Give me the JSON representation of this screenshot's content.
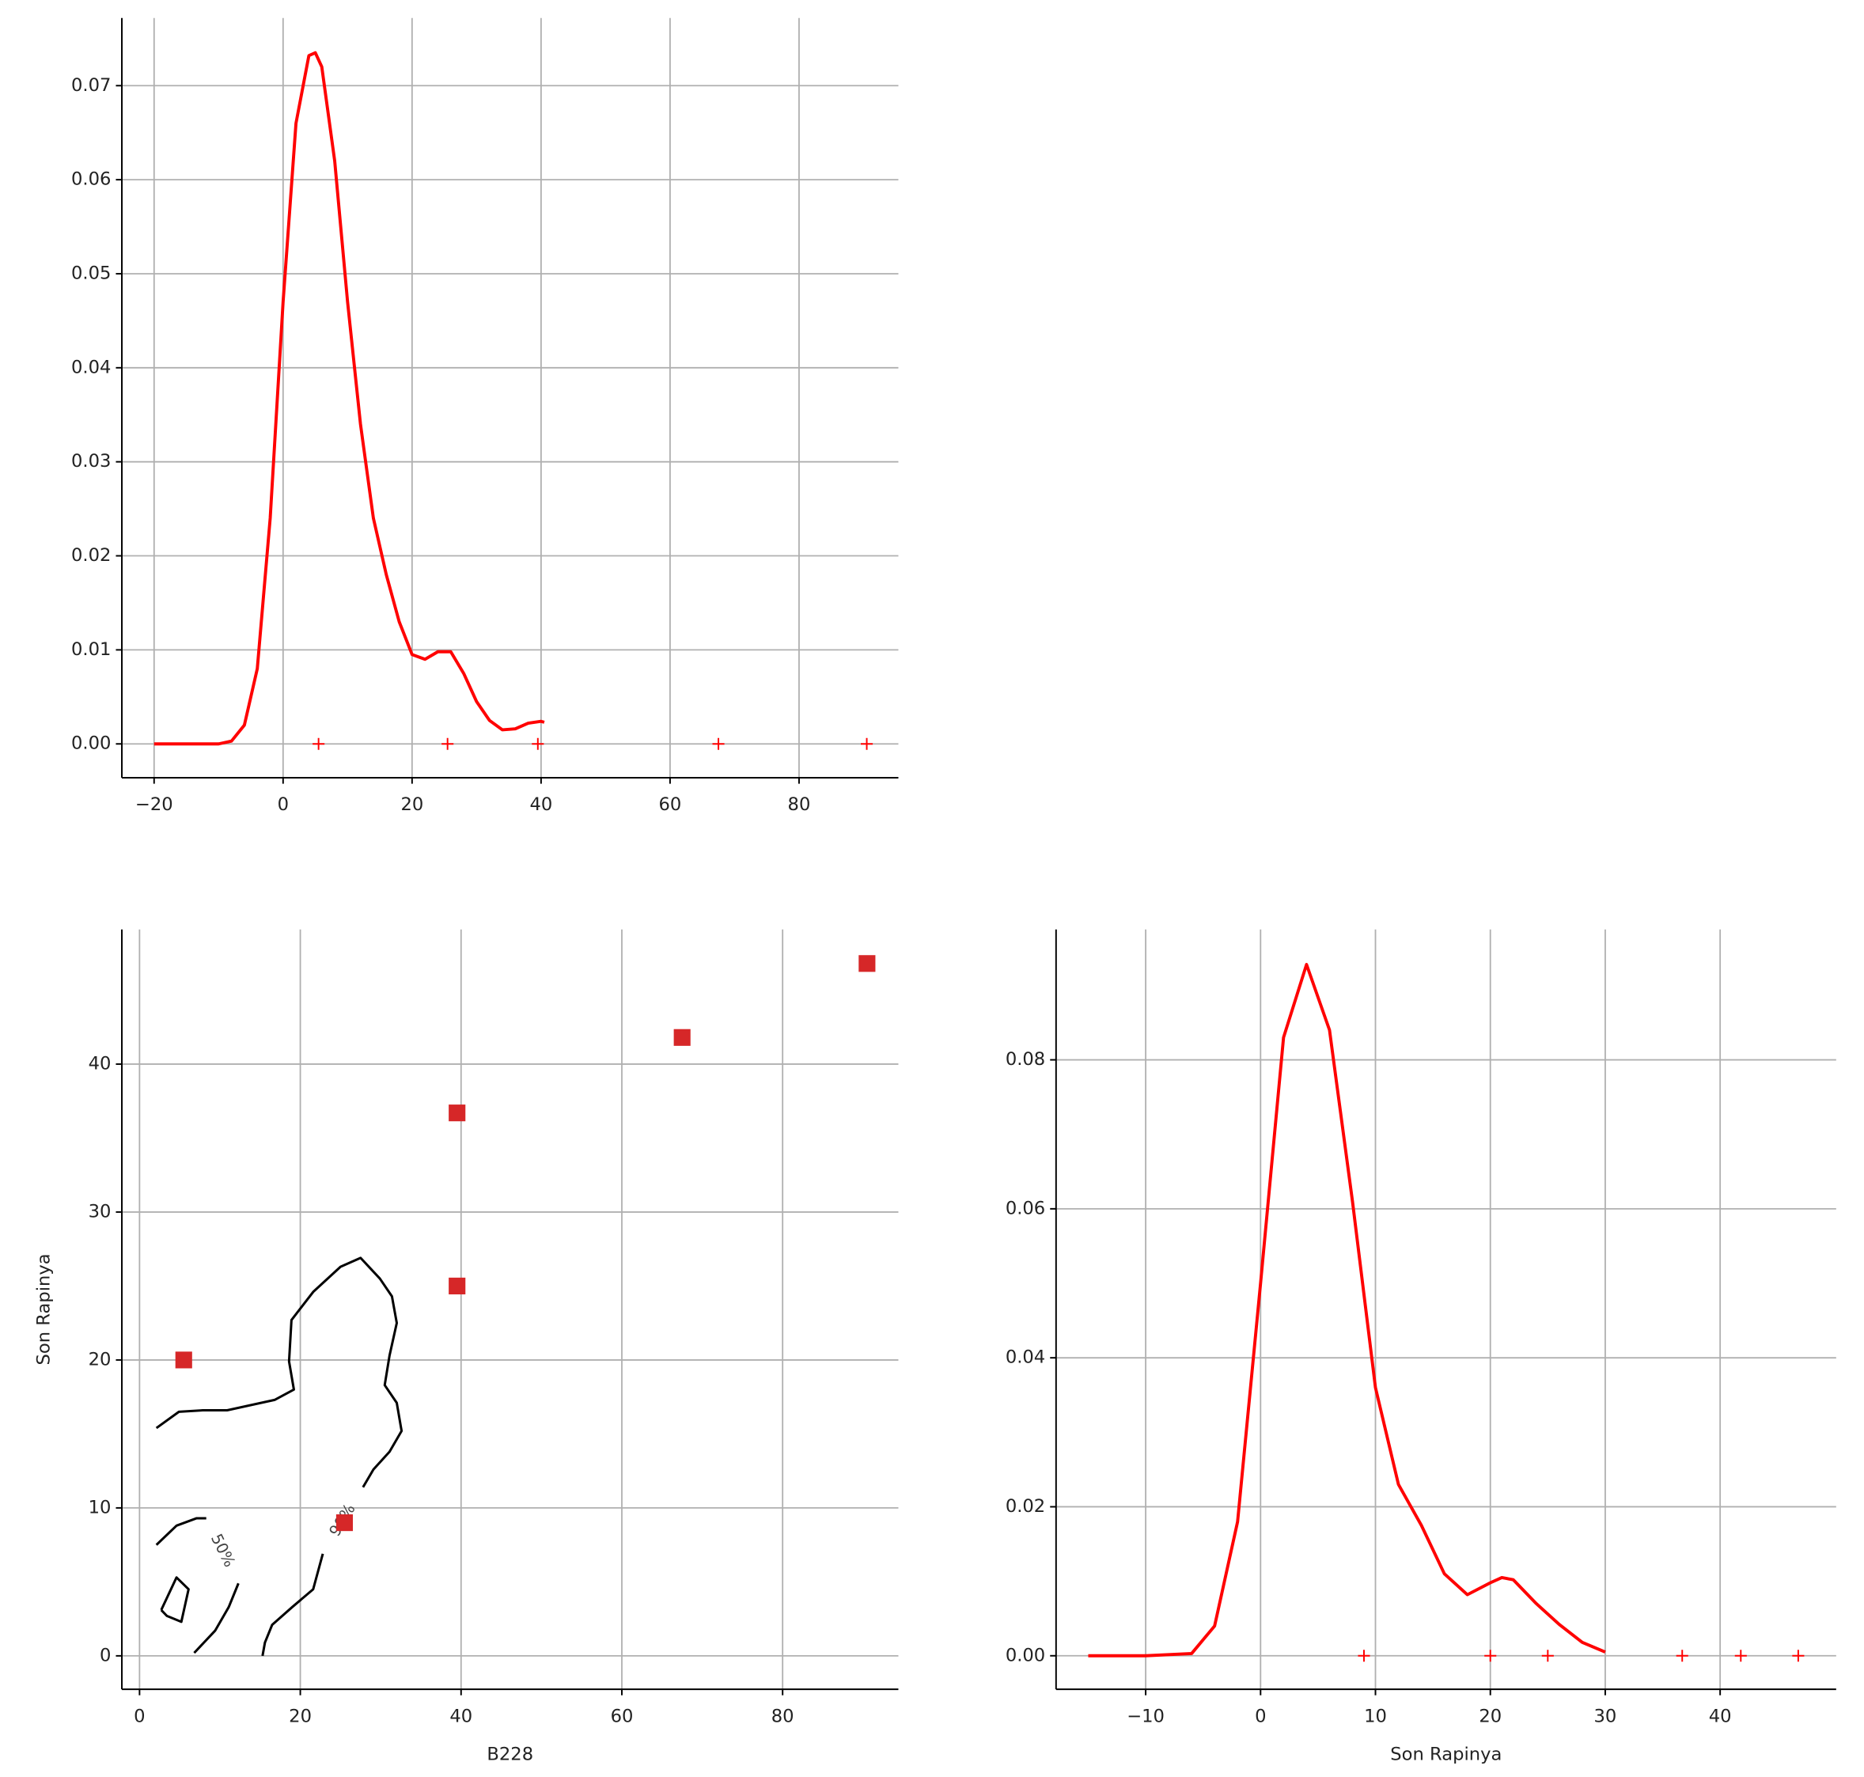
{
  "chart_data": [
    {
      "type": "line",
      "color": "#ff0000",
      "rug_color": "#ff0000",
      "grid": true,
      "x": [
        -20,
        -10,
        -8,
        -6,
        -4,
        -2,
        0,
        2,
        4,
        5,
        6,
        8,
        10,
        12,
        14,
        16,
        18,
        20,
        22,
        24,
        26,
        28,
        30,
        32,
        34,
        36,
        38,
        40,
        40.5
      ],
      "y": [
        0,
        0,
        0.0003,
        0.002,
        0.008,
        0.024,
        0.047,
        0.066,
        0.0732,
        0.0735,
        0.072,
        0.062,
        0.047,
        0.034,
        0.024,
        0.018,
        0.013,
        0.0095,
        0.009,
        0.0098,
        0.0098,
        0.0075,
        0.0045,
        0.0025,
        0.0015,
        0.0016,
        0.0022,
        0.0024,
        0.0023
      ],
      "rug": [
        5.5,
        25.5,
        39.5,
        67.5,
        90.5
      ],
      "xlim": [
        -25,
        95.4
      ],
      "ylim": [
        -0.0036,
        0.0772
      ],
      "xticks": [
        {
          "value": -20,
          "label": "−20"
        },
        0,
        20,
        40,
        60,
        80
      ],
      "yticks": [
        {
          "value": 0,
          "label": "0.00"
        },
        0.01,
        0.02,
        0.03,
        0.04,
        0.05,
        0.06,
        0.07
      ]
    },
    {
      "type": "scatter",
      "color": "#d62728",
      "contour_color": "#000000",
      "grid": true,
      "xlabel": "B228",
      "ylabel": "Son Rapinya",
      "x": [
        5.5,
        25.5,
        39.5,
        39.5,
        67.5,
        90.5
      ],
      "y": [
        20,
        9,
        25,
        36.7,
        41.8,
        46.8
      ],
      "contours": [
        {
          "label": "90%",
          "x": [
            2.1,
            4.9,
            7.9,
            10.9,
            16.8,
            19.2,
            18.6,
            18.9,
            21.6,
            25,
            27.5,
            29.9,
            31.4,
            32,
            31.1,
            30.5,
            32,
            32.6,
            31.1,
            29.1,
            27.8,
            null,
            22.8,
            21.6,
            19,
            16.5,
            15.6,
            15.3
          ],
          "y": [
            15.4,
            16.5,
            16.6,
            16.6,
            17.3,
            18,
            19.9,
            22.7,
            24.6,
            26.3,
            26.9,
            25.5,
            24.3,
            22.5,
            20.3,
            18.3,
            17.1,
            15.2,
            13.8,
            12.6,
            11.4,
            null,
            6.9,
            4.5,
            3.3,
            2.1,
            0.9,
            0
          ]
        },
        {
          "label": "50%",
          "x": [
            2.1,
            4.6,
            7.1,
            8.3,
            null,
            12.3,
            11.1,
            9.4,
            6.8
          ],
          "y": [
            7.5,
            8.8,
            9.3,
            9.3,
            null,
            4.9,
            3.3,
            1.7,
            0.2
          ]
        },
        {
          "x": [
            2.7,
            4.6,
            6.1,
            5.2,
            3.4,
            2.7
          ],
          "y": [
            3.1,
            5.3,
            4.5,
            2.3,
            2.7,
            3.1
          ]
        }
      ],
      "xlim": [
        -2.2,
        94.4
      ],
      "ylim": [
        -2.26,
        49.1
      ],
      "xticks": [
        0,
        20,
        40,
        60,
        80
      ],
      "yticks": [
        0,
        10,
        20,
        30,
        40
      ]
    },
    {
      "type": "line",
      "color": "#ff0000",
      "rug_color": "#ff0000",
      "grid": true,
      "xlabel": "Son Rapinya",
      "x": [
        -15,
        -10,
        -6,
        -4,
        -2,
        0,
        2,
        4,
        6,
        8,
        10,
        12,
        14,
        16,
        18,
        20,
        21,
        22,
        24,
        26,
        28,
        30
      ],
      "y": [
        0,
        0,
        0.0003,
        0.004,
        0.018,
        0.05,
        0.083,
        0.0928,
        0.084,
        0.061,
        0.036,
        0.023,
        0.0175,
        0.011,
        0.0082,
        0.0098,
        0.0105,
        0.0102,
        0.007,
        0.0042,
        0.0018,
        0.0005
      ],
      "rug": [
        9,
        20,
        25,
        36.7,
        41.8,
        46.8
      ],
      "xlim": [
        -17.8,
        50.1
      ],
      "ylim": [
        -0.0045,
        0.0975
      ],
      "xticks": [
        {
          "value": -10,
          "label": "−10"
        },
        0,
        10,
        20,
        30,
        40
      ],
      "yticks": [
        {
          "value": 0,
          "label": "0.00"
        },
        0.02,
        0.04,
        0.06,
        0.08
      ]
    }
  ]
}
